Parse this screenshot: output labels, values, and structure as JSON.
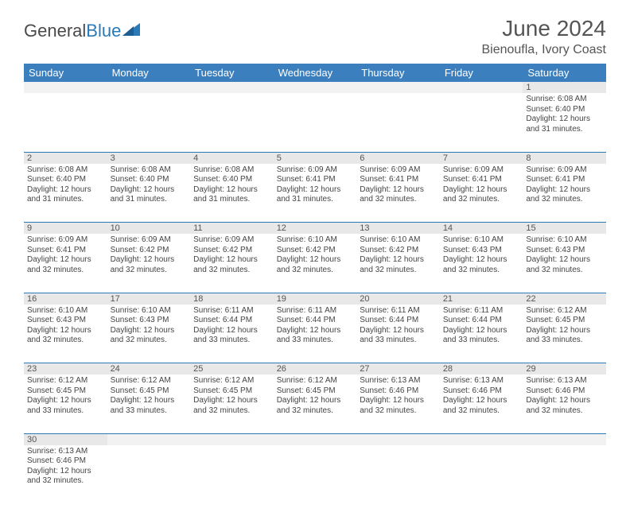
{
  "brand": {
    "part1": "General",
    "part2": "Blue"
  },
  "title": "June 2024",
  "location": "Bienoufla, Ivory Coast",
  "colors": {
    "header_bg": "#3b7fbf",
    "header_text": "#ffffff",
    "rule": "#2a7ab8",
    "daynum_bg": "#e8e8e8",
    "text": "#444444",
    "brand_gray": "#4a4a4a",
    "brand_blue": "#2a7ab8"
  },
  "weekdays": [
    "Sunday",
    "Monday",
    "Tuesday",
    "Wednesday",
    "Thursday",
    "Friday",
    "Saturday"
  ],
  "weeks": [
    {
      "days": [
        null,
        null,
        null,
        null,
        null,
        null,
        {
          "n": "1",
          "sunrise": "Sunrise: 6:08 AM",
          "sunset": "Sunset: 6:40 PM",
          "day1": "Daylight: 12 hours",
          "day2": "and 31 minutes."
        }
      ]
    },
    {
      "days": [
        {
          "n": "2",
          "sunrise": "Sunrise: 6:08 AM",
          "sunset": "Sunset: 6:40 PM",
          "day1": "Daylight: 12 hours",
          "day2": "and 31 minutes."
        },
        {
          "n": "3",
          "sunrise": "Sunrise: 6:08 AM",
          "sunset": "Sunset: 6:40 PM",
          "day1": "Daylight: 12 hours",
          "day2": "and 31 minutes."
        },
        {
          "n": "4",
          "sunrise": "Sunrise: 6:08 AM",
          "sunset": "Sunset: 6:40 PM",
          "day1": "Daylight: 12 hours",
          "day2": "and 31 minutes."
        },
        {
          "n": "5",
          "sunrise": "Sunrise: 6:09 AM",
          "sunset": "Sunset: 6:41 PM",
          "day1": "Daylight: 12 hours",
          "day2": "and 31 minutes."
        },
        {
          "n": "6",
          "sunrise": "Sunrise: 6:09 AM",
          "sunset": "Sunset: 6:41 PM",
          "day1": "Daylight: 12 hours",
          "day2": "and 32 minutes."
        },
        {
          "n": "7",
          "sunrise": "Sunrise: 6:09 AM",
          "sunset": "Sunset: 6:41 PM",
          "day1": "Daylight: 12 hours",
          "day2": "and 32 minutes."
        },
        {
          "n": "8",
          "sunrise": "Sunrise: 6:09 AM",
          "sunset": "Sunset: 6:41 PM",
          "day1": "Daylight: 12 hours",
          "day2": "and 32 minutes."
        }
      ]
    },
    {
      "days": [
        {
          "n": "9",
          "sunrise": "Sunrise: 6:09 AM",
          "sunset": "Sunset: 6:41 PM",
          "day1": "Daylight: 12 hours",
          "day2": "and 32 minutes."
        },
        {
          "n": "10",
          "sunrise": "Sunrise: 6:09 AM",
          "sunset": "Sunset: 6:42 PM",
          "day1": "Daylight: 12 hours",
          "day2": "and 32 minutes."
        },
        {
          "n": "11",
          "sunrise": "Sunrise: 6:09 AM",
          "sunset": "Sunset: 6:42 PM",
          "day1": "Daylight: 12 hours",
          "day2": "and 32 minutes."
        },
        {
          "n": "12",
          "sunrise": "Sunrise: 6:10 AM",
          "sunset": "Sunset: 6:42 PM",
          "day1": "Daylight: 12 hours",
          "day2": "and 32 minutes."
        },
        {
          "n": "13",
          "sunrise": "Sunrise: 6:10 AM",
          "sunset": "Sunset: 6:42 PM",
          "day1": "Daylight: 12 hours",
          "day2": "and 32 minutes."
        },
        {
          "n": "14",
          "sunrise": "Sunrise: 6:10 AM",
          "sunset": "Sunset: 6:43 PM",
          "day1": "Daylight: 12 hours",
          "day2": "and 32 minutes."
        },
        {
          "n": "15",
          "sunrise": "Sunrise: 6:10 AM",
          "sunset": "Sunset: 6:43 PM",
          "day1": "Daylight: 12 hours",
          "day2": "and 32 minutes."
        }
      ]
    },
    {
      "days": [
        {
          "n": "16",
          "sunrise": "Sunrise: 6:10 AM",
          "sunset": "Sunset: 6:43 PM",
          "day1": "Daylight: 12 hours",
          "day2": "and 32 minutes."
        },
        {
          "n": "17",
          "sunrise": "Sunrise: 6:10 AM",
          "sunset": "Sunset: 6:43 PM",
          "day1": "Daylight: 12 hours",
          "day2": "and 32 minutes."
        },
        {
          "n": "18",
          "sunrise": "Sunrise: 6:11 AM",
          "sunset": "Sunset: 6:44 PM",
          "day1": "Daylight: 12 hours",
          "day2": "and 33 minutes."
        },
        {
          "n": "19",
          "sunrise": "Sunrise: 6:11 AM",
          "sunset": "Sunset: 6:44 PM",
          "day1": "Daylight: 12 hours",
          "day2": "and 33 minutes."
        },
        {
          "n": "20",
          "sunrise": "Sunrise: 6:11 AM",
          "sunset": "Sunset: 6:44 PM",
          "day1": "Daylight: 12 hours",
          "day2": "and 33 minutes."
        },
        {
          "n": "21",
          "sunrise": "Sunrise: 6:11 AM",
          "sunset": "Sunset: 6:44 PM",
          "day1": "Daylight: 12 hours",
          "day2": "and 33 minutes."
        },
        {
          "n": "22",
          "sunrise": "Sunrise: 6:12 AM",
          "sunset": "Sunset: 6:45 PM",
          "day1": "Daylight: 12 hours",
          "day2": "and 33 minutes."
        }
      ]
    },
    {
      "days": [
        {
          "n": "23",
          "sunrise": "Sunrise: 6:12 AM",
          "sunset": "Sunset: 6:45 PM",
          "day1": "Daylight: 12 hours",
          "day2": "and 33 minutes."
        },
        {
          "n": "24",
          "sunrise": "Sunrise: 6:12 AM",
          "sunset": "Sunset: 6:45 PM",
          "day1": "Daylight: 12 hours",
          "day2": "and 33 minutes."
        },
        {
          "n": "25",
          "sunrise": "Sunrise: 6:12 AM",
          "sunset": "Sunset: 6:45 PM",
          "day1": "Daylight: 12 hours",
          "day2": "and 32 minutes."
        },
        {
          "n": "26",
          "sunrise": "Sunrise: 6:12 AM",
          "sunset": "Sunset: 6:45 PM",
          "day1": "Daylight: 12 hours",
          "day2": "and 32 minutes."
        },
        {
          "n": "27",
          "sunrise": "Sunrise: 6:13 AM",
          "sunset": "Sunset: 6:46 PM",
          "day1": "Daylight: 12 hours",
          "day2": "and 32 minutes."
        },
        {
          "n": "28",
          "sunrise": "Sunrise: 6:13 AM",
          "sunset": "Sunset: 6:46 PM",
          "day1": "Daylight: 12 hours",
          "day2": "and 32 minutes."
        },
        {
          "n": "29",
          "sunrise": "Sunrise: 6:13 AM",
          "sunset": "Sunset: 6:46 PM",
          "day1": "Daylight: 12 hours",
          "day2": "and 32 minutes."
        }
      ]
    },
    {
      "days": [
        {
          "n": "30",
          "sunrise": "Sunrise: 6:13 AM",
          "sunset": "Sunset: 6:46 PM",
          "day1": "Daylight: 12 hours",
          "day2": "and 32 minutes."
        },
        null,
        null,
        null,
        null,
        null,
        null
      ]
    }
  ]
}
